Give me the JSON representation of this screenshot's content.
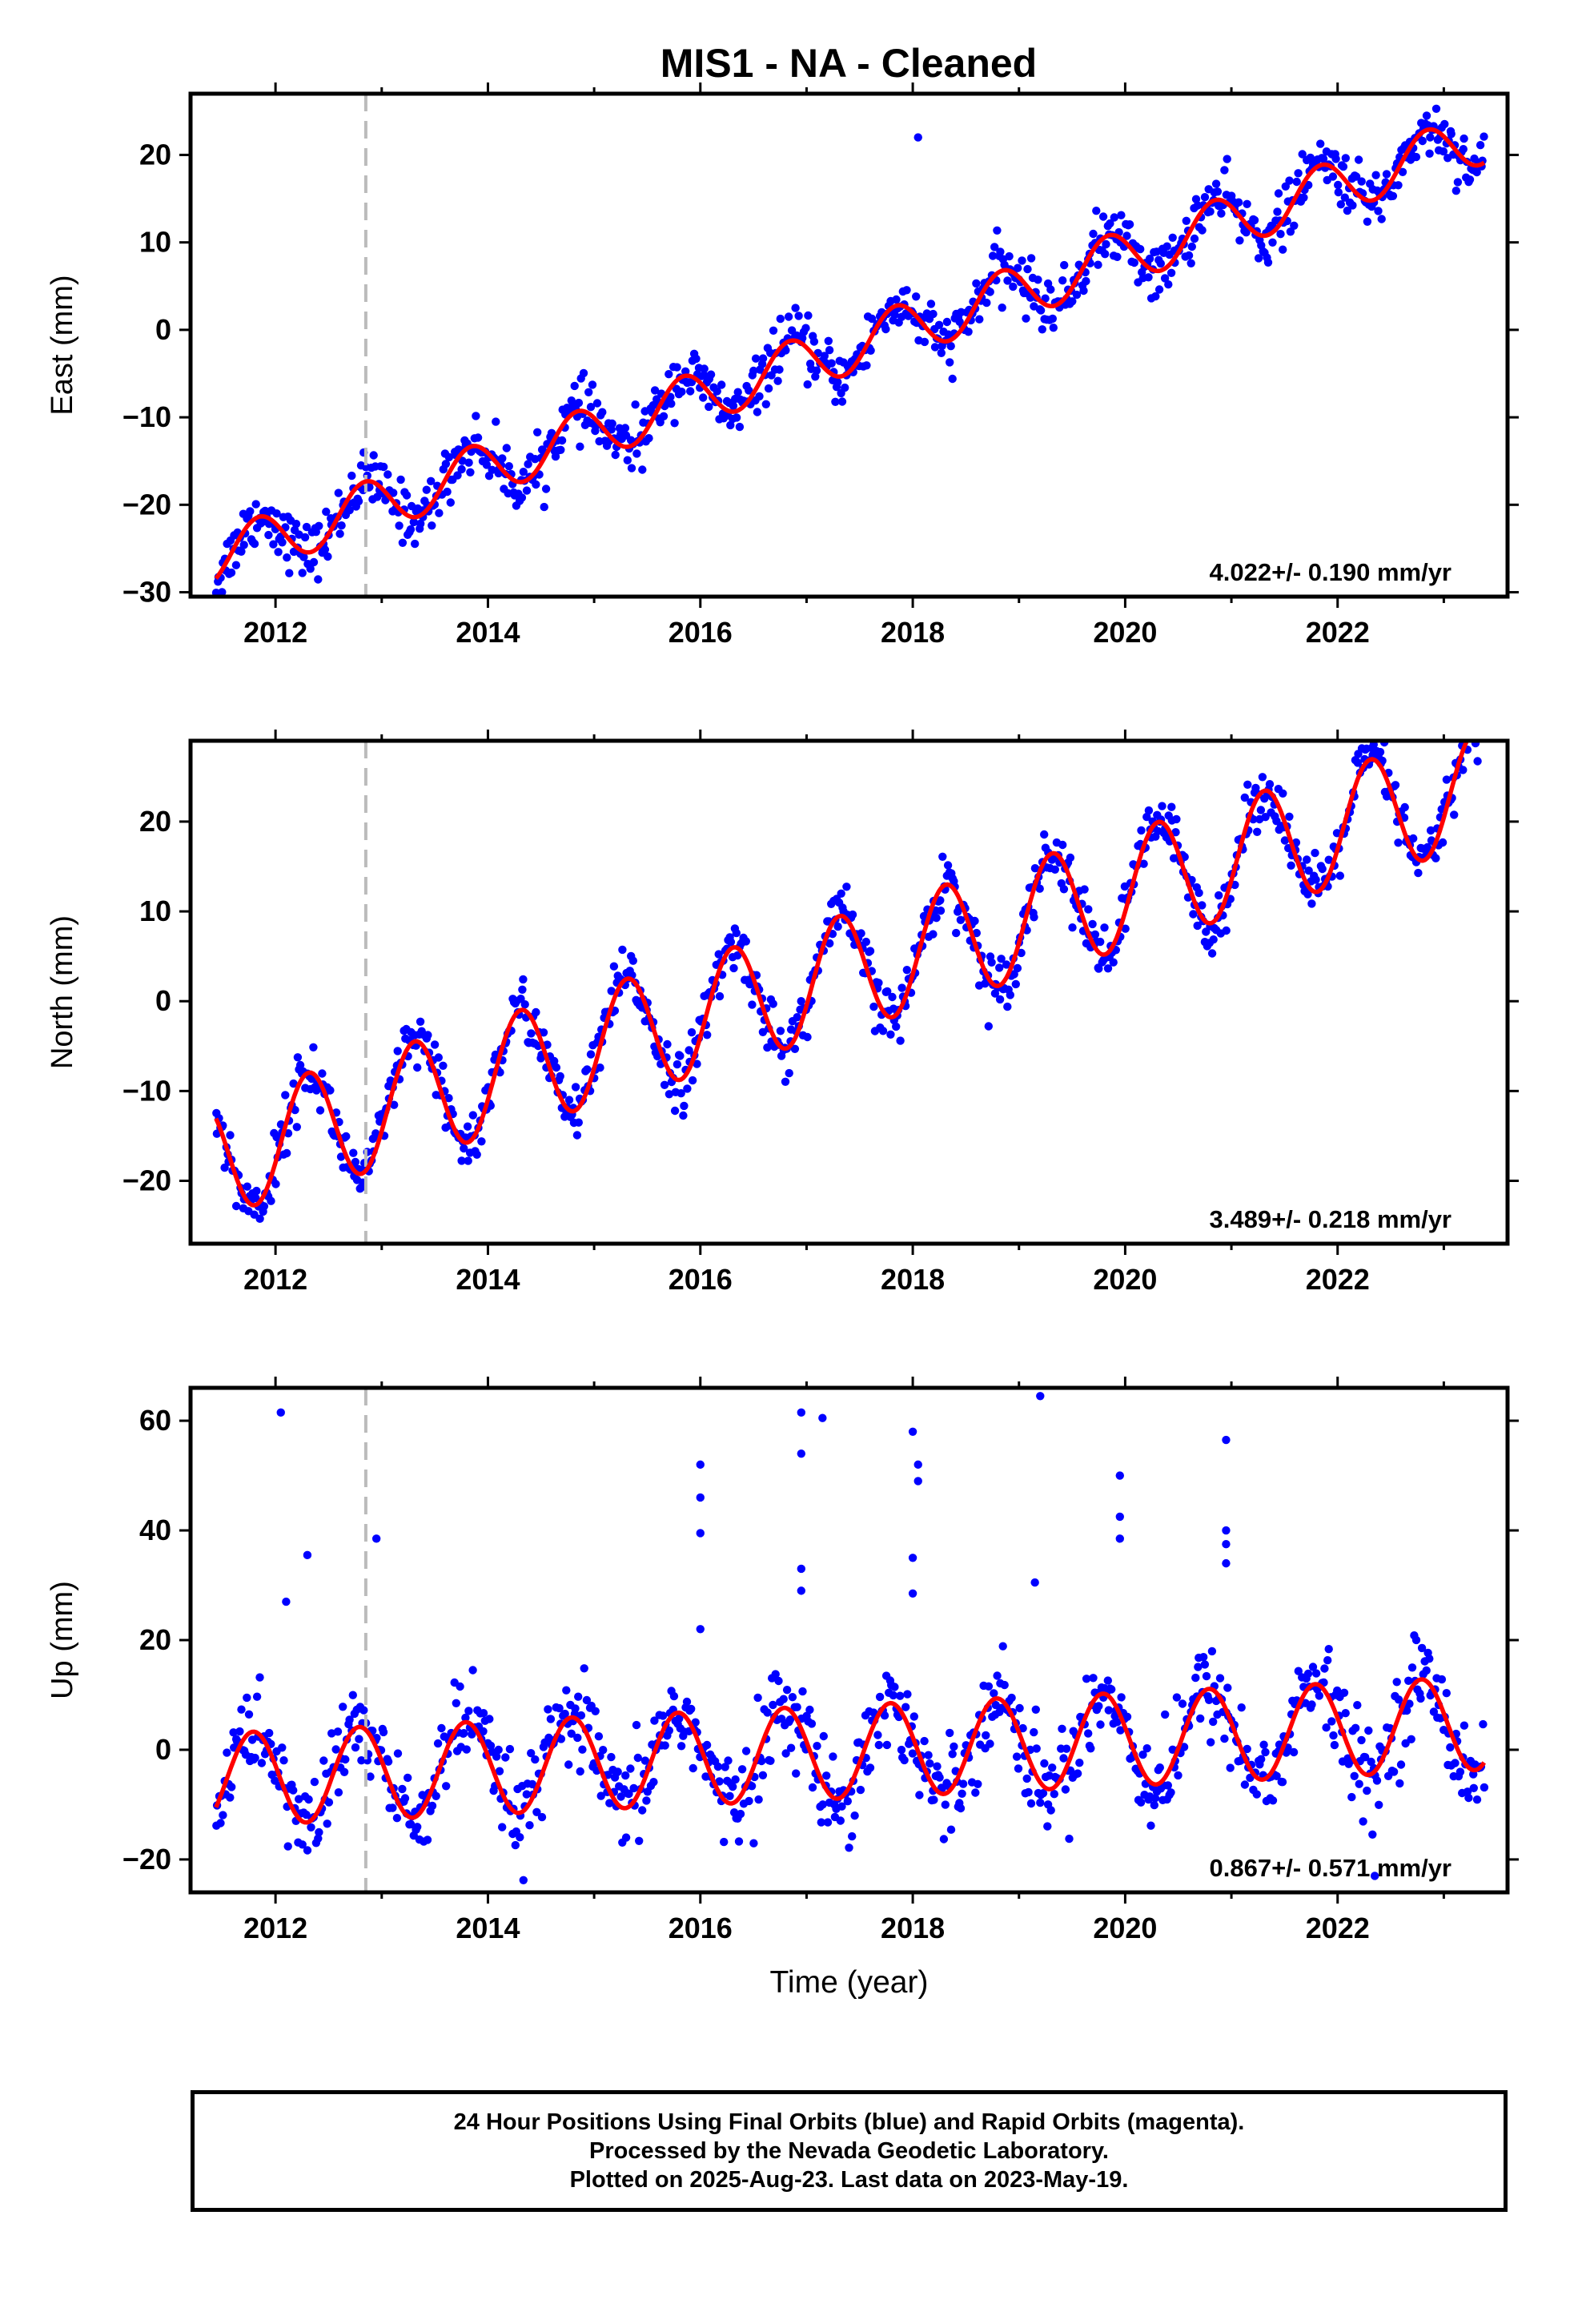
{
  "title": "MIS1  - NA - Cleaned",
  "footer": {
    "line1": "24 Hour Positions Using Final Orbits (blue) and Rapid Orbits (magenta).",
    "line2": "Processed by the Nevada Geodetic Laboratory.",
    "line3": "Plotted on 2025-Aug-23. Last data on 2023-May-19."
  },
  "colors": {
    "points": "#0000ff",
    "fit": "#ff0000",
    "break_line": "#bbbbbb",
    "axes": "#000000"
  },
  "chart_data": [
    {
      "type": "scatter",
      "component": "East",
      "ylabel": "East (mm)",
      "xlabel": "",
      "xlim": [
        2011.2,
        2023.6
      ],
      "ylim": [
        -30.5,
        27
      ],
      "xticks": [
        2012,
        2014,
        2016,
        2018,
        2020,
        2022
      ],
      "yticks": [
        -30,
        -20,
        -10,
        0,
        10,
        20
      ],
      "rate_label": "4.022+/- 0.190 mm/yr",
      "equipment_change": 2012.85,
      "fit": {
        "start": 2011.44,
        "end": 2023.38,
        "offset_at_start": -26.0,
        "rate": 4.022,
        "annual_amp": 3.0,
        "annual_phase": 0.15
      },
      "scatter": {
        "noise": 1.6,
        "n": 900
      },
      "outliers": [
        [
          2018.05,
          22
        ]
      ],
      "grid": false
    },
    {
      "type": "scatter",
      "component": "North",
      "ylabel": "North (mm)",
      "xlabel": "",
      "xlim": [
        2011.2,
        2023.6
      ],
      "ylim": [
        -27,
        29
      ],
      "xticks": [
        2012,
        2014,
        2016,
        2018,
        2020,
        2022
      ],
      "yticks": [
        -20,
        -10,
        0,
        10,
        20
      ],
      "rate_label": "3.489+/- 0.218 mm/yr",
      "equipment_change": 2012.85,
      "fit": {
        "start": 2011.44,
        "end": 2023.38,
        "offset_at_start": -17.5,
        "rate": 3.489,
        "annual_amp": 6.5,
        "annual_phase": 0.62
      },
      "scatter": {
        "noise": 1.6,
        "n": 900
      },
      "outliers": [],
      "grid": false
    },
    {
      "type": "scatter",
      "component": "Up",
      "ylabel": "Up (mm)",
      "xlabel": "Time (year)",
      "xlim": [
        2011.2,
        2023.6
      ],
      "ylim": [
        -26,
        66
      ],
      "xticks": [
        2012,
        2014,
        2016,
        2018,
        2020,
        2022
      ],
      "yticks": [
        -20,
        0,
        20,
        40,
        60
      ],
      "rate_label": "0.867+/- 0.571 mm/yr",
      "equipment_change": 2012.85,
      "fit": {
        "start": 2011.44,
        "end": 2023.38,
        "offset_at_start": -5.5,
        "rate": 0.867,
        "annual_amp": 8.5,
        "annual_phase": 0.1
      },
      "scatter": {
        "noise": 4.2,
        "n": 900
      },
      "outliers": [
        [
          2012.05,
          61.5
        ],
        [
          2012.1,
          27
        ],
        [
          2012.3,
          35.5
        ],
        [
          2012.95,
          38.5
        ],
        [
          2016.0,
          52
        ],
        [
          2016.0,
          46
        ],
        [
          2016.0,
          39.5
        ],
        [
          2016.0,
          22
        ],
        [
          2016.95,
          61.5
        ],
        [
          2016.95,
          54
        ],
        [
          2017.15,
          60.5
        ],
        [
          2016.95,
          33
        ],
        [
          2016.95,
          29
        ],
        [
          2018.0,
          58
        ],
        [
          2018.05,
          52
        ],
        [
          2018.05,
          49
        ],
        [
          2018.0,
          35
        ],
        [
          2018.0,
          28.5
        ],
        [
          2019.2,
          64.5
        ],
        [
          2019.15,
          30.5
        ],
        [
          2019.95,
          50
        ],
        [
          2019.95,
          42.5
        ],
        [
          2019.95,
          38.5
        ],
        [
          2020.95,
          56.5
        ],
        [
          2020.95,
          40
        ],
        [
          2020.95,
          37.5
        ],
        [
          2020.95,
          34
        ],
        [
          2022.35,
          -23
        ]
      ],
      "grid": false
    }
  ]
}
